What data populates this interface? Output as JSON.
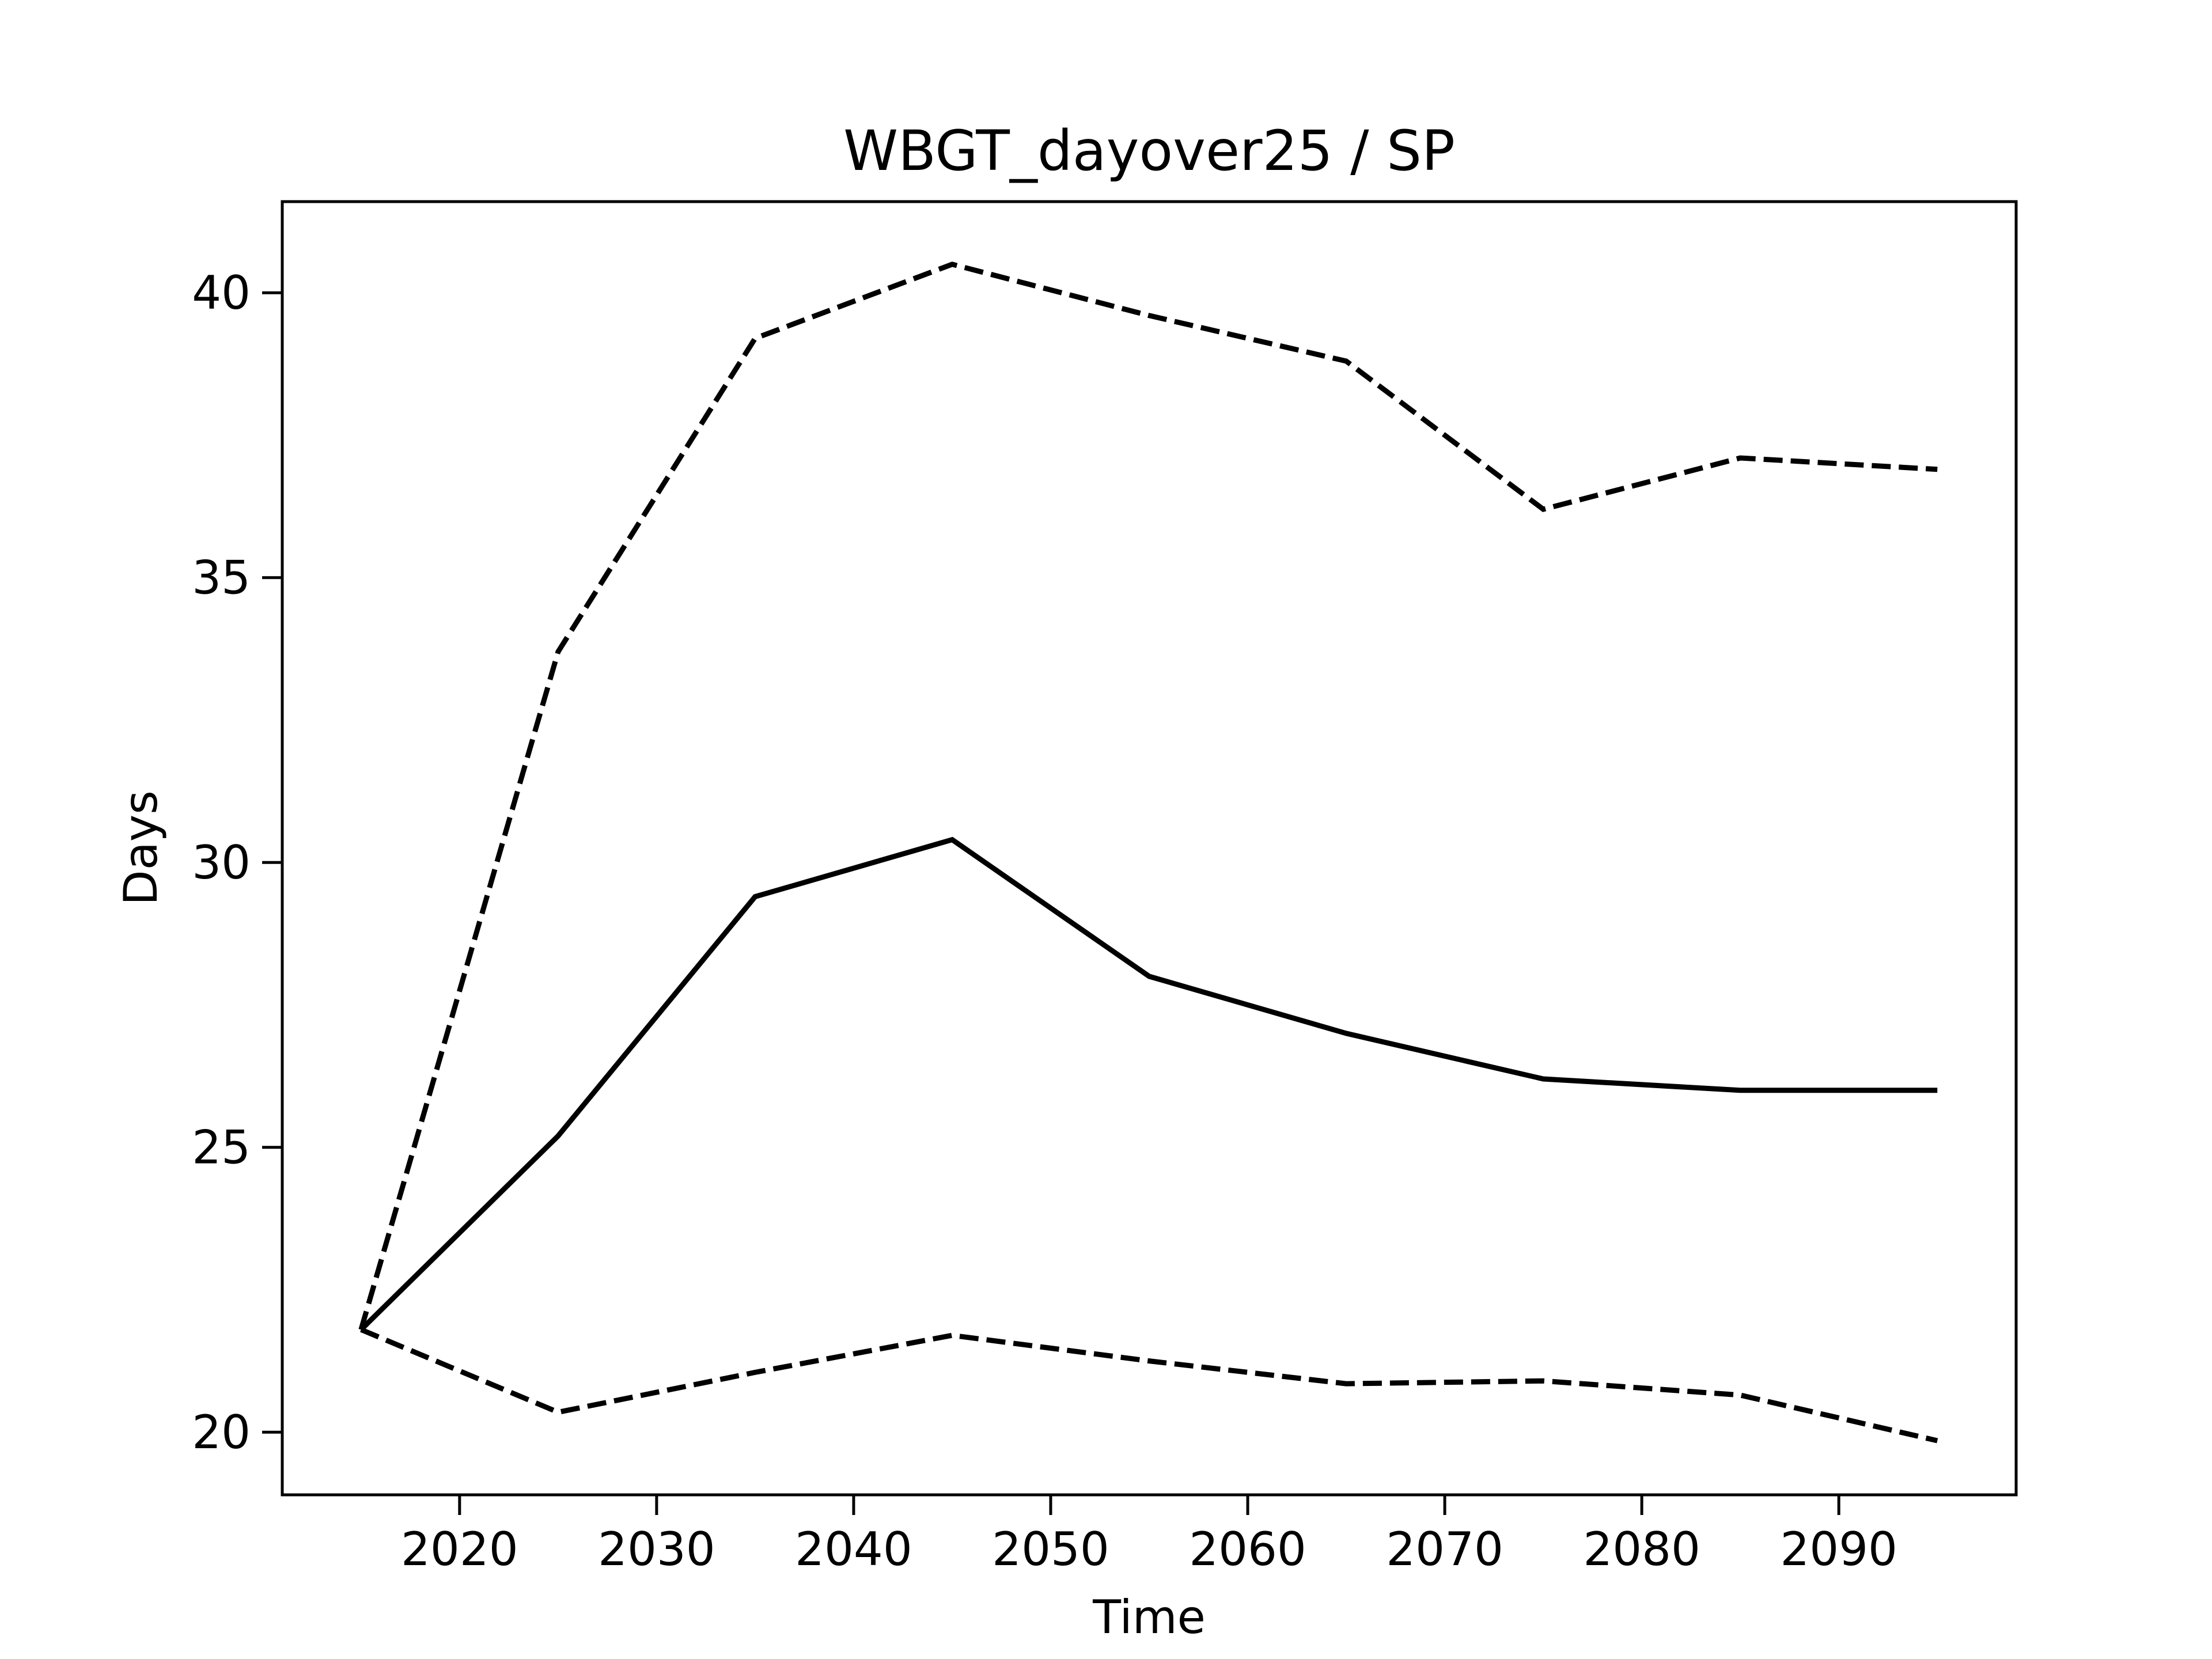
{
  "chart_data": {
    "type": "line",
    "title": "WBGT_dayover25 / SP",
    "xlabel": "Time",
    "ylabel": "Days",
    "x": [
      2015,
      2025,
      2035,
      2045,
      2055,
      2065,
      2075,
      2085,
      2095
    ],
    "series": [
      {
        "style": "solid",
        "values": [
          21.8,
          25.2,
          29.4,
          30.4,
          28.0,
          27.0,
          26.2,
          26.0,
          26.0
        ]
      },
      {
        "style": "dashed",
        "values": [
          21.8,
          33.7,
          39.2,
          40.5,
          39.6,
          38.8,
          36.2,
          37.1,
          36.9
        ]
      },
      {
        "style": "dashed",
        "values": [
          21.8,
          20.35,
          21.05,
          21.7,
          21.25,
          20.85,
          20.9,
          20.65,
          19.85
        ]
      }
    ],
    "xticks": [
      "2020",
      "2030",
      "2040",
      "2050",
      "2060",
      "2070",
      "2080",
      "2090"
    ],
    "yticks": [
      "20",
      "25",
      "30",
      "35",
      "40"
    ],
    "xlim": [
      2011,
      2099
    ],
    "ylim": [
      18.9,
      41.6
    ],
    "grid": false,
    "legend": "none",
    "line_color": "#000000"
  }
}
